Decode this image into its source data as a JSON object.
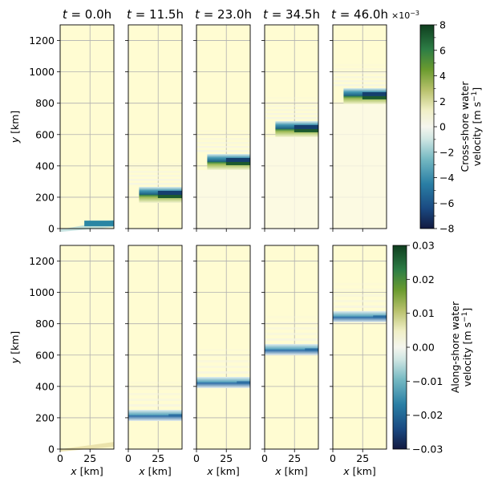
{
  "chart_data": {
    "type": "heatmap",
    "panel_titles": [
      "$t = 0.0$h",
      "$t = 11.5$h",
      "$t = 23.0$h",
      "$t = 34.5$h",
      "$t = 46.0$h"
    ],
    "title_prefix": "t",
    "title_values": [
      "0.0h",
      "11.5h",
      "23.0h",
      "34.5h",
      "46.0h"
    ],
    "times_h": [
      0.0,
      11.5,
      23.0,
      34.5,
      46.0
    ],
    "xlabel": "x [km]",
    "xlabel_var": "x",
    "xlabel_unit": "[km]",
    "ylabel": "y [km]",
    "ylabel_var": "y",
    "ylabel_unit": "[km]",
    "xlim": [
      0,
      45
    ],
    "ylim": [
      0,
      1300
    ],
    "xticks": [
      0,
      25
    ],
    "xtick_labels": [
      "0",
      "25"
    ],
    "yticks": [
      0,
      200,
      400,
      600,
      800,
      1000,
      1200
    ],
    "ytick_labels": [
      "0",
      "200",
      "400",
      "600",
      "800",
      "1000",
      "1200"
    ],
    "grid": true,
    "colormap": "gist_earth_r",
    "colormap_stops": [
      "#f8f8e4",
      "#eef0c8",
      "#b7c36c",
      "#6aa132",
      "#2f8a4a",
      "#1c5f4a",
      "#10371f"
    ],
    "background_color": "#fffcd2",
    "front_y_km": [
      25,
      215,
      425,
      635,
      845
    ],
    "rows": [
      {
        "quantity": "Cross-shore water velocity",
        "colorbar_label_line1": "Cross-shore water",
        "colorbar_label_line2": "velocity [m s",
        "colorbar_label_sup": "−1",
        "colorbar_label_end": "]",
        "units": "m s^-1",
        "vmin": -0.008,
        "vmax": 0.008,
        "colorbar_ticks": [
          8,
          6,
          4,
          2,
          0,
          -2,
          -4,
          -6,
          -8
        ],
        "colorbar_tick_labels": [
          "8",
          "6",
          "4",
          "2",
          "0",
          "−2",
          "−4",
          "−6",
          "−8"
        ],
        "colorbar_scale_label": "×10",
        "colorbar_scale_exp": "−3",
        "front_min": [
          -0.007,
          -0.0075,
          -0.0065,
          -0.0065,
          -0.007
        ],
        "front_max": [
          0.0,
          0.007,
          0.0075,
          0.007,
          0.0075
        ]
      },
      {
        "quantity": "Along-shore water velocity",
        "colorbar_label_line1": "Along-shore water",
        "colorbar_label_line2": "velocity [m s",
        "colorbar_label_sup": "−1",
        "colorbar_label_end": "]",
        "units": "m s^-1",
        "vmin": -0.03,
        "vmax": 0.03,
        "colorbar_ticks": [
          0.03,
          0.02,
          0.01,
          0.0,
          -0.01,
          -0.02,
          -0.03
        ],
        "colorbar_tick_labels": [
          "0.03",
          "0.02",
          "0.01",
          "0.00",
          "−0.01",
          "−0.02",
          "−0.03"
        ],
        "front_min": [
          0.003,
          -0.02,
          -0.02,
          -0.015,
          -0.015
        ],
        "front_max": [
          0.0,
          0.0,
          0.0,
          0.0,
          0.0
        ]
      }
    ]
  },
  "colors": {
    "background": "#fffcd2",
    "grid": "#b0b0b0",
    "colormap_top": "#0f3e1f",
    "colormap_bottom": "#121940"
  }
}
